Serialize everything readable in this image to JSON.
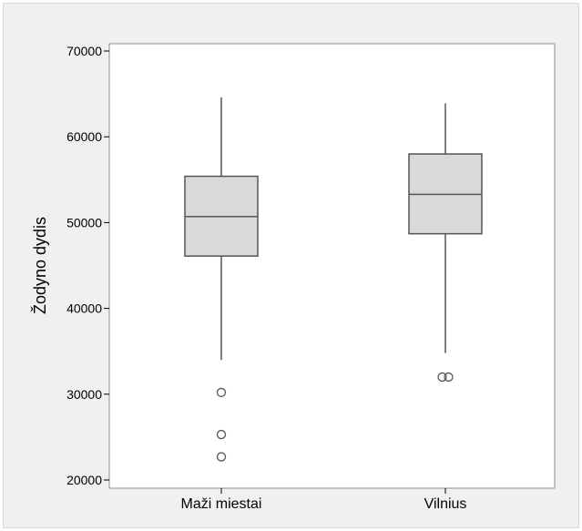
{
  "colors": {
    "frame_bg": "#f0f0f0",
    "plot_bg": "#ffffff",
    "box_fill": "#d9d9d9",
    "line": "#555555"
  },
  "chart_data": {
    "type": "boxplot",
    "xlabel": "",
    "ylabel": "Žodyno dydis",
    "ylim": [
      19000,
      70500
    ],
    "yticks": [
      20000,
      30000,
      40000,
      50000,
      60000,
      70000
    ],
    "ytick_labels": [
      "20000",
      "30000",
      "40000",
      "50000",
      "60000",
      "70000"
    ],
    "grid": false,
    "categories": [
      "Maži miestai",
      "Vilnius"
    ],
    "boxes": [
      {
        "category": "Maži miestai",
        "whisker_low": 34000,
        "q1": 46100,
        "median": 50700,
        "q3": 55400,
        "whisker_high": 64600,
        "outliers": [
          30200,
          25300,
          22700
        ]
      },
      {
        "category": "Vilnius",
        "whisker_low": 34800,
        "q1": 48700,
        "median": 53300,
        "q3": 58000,
        "whisker_high": 63900,
        "outliers": [
          32000,
          32000
        ]
      }
    ]
  }
}
